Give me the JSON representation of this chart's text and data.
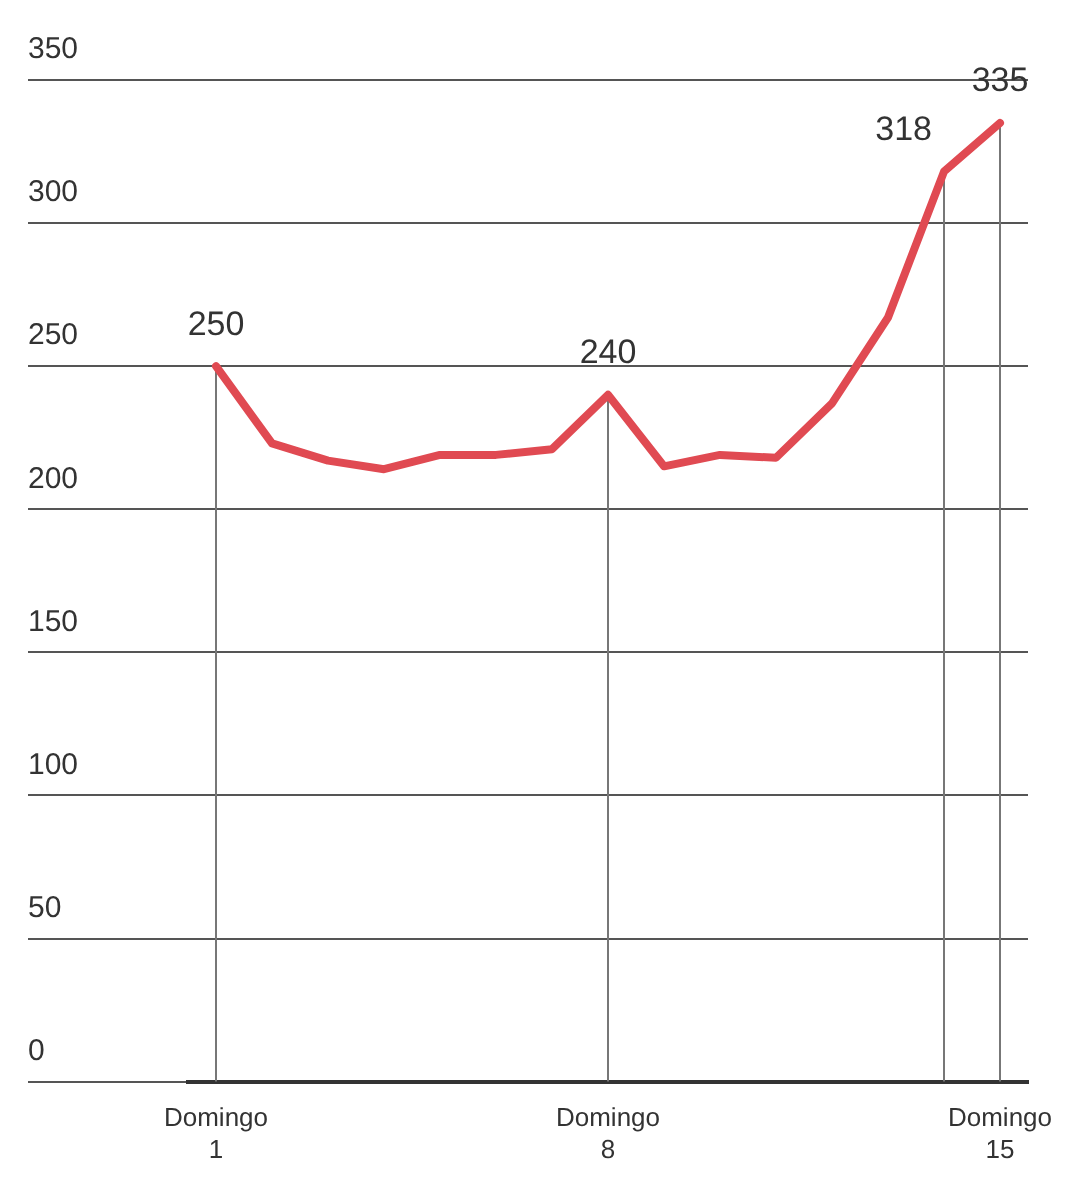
{
  "chart_data": {
    "type": "line",
    "categories": [
      "Domingo 1",
      null,
      null,
      null,
      null,
      null,
      null,
      "Domingo 8",
      null,
      null,
      null,
      null,
      null,
      null,
      "Domingo 15"
    ],
    "series": [
      {
        "color": "#e04a52",
        "values": [
          250,
          223,
          217,
          214,
          219,
          219,
          221,
          240,
          215,
          219,
          218,
          237,
          267,
          318,
          335
        ],
        "value_labels": [
          "250",
          null,
          null,
          null,
          null,
          null,
          null,
          "240",
          null,
          null,
          null,
          null,
          null,
          "318",
          "335"
        ]
      }
    ],
    "ylim": [
      0,
      350
    ],
    "yticks": [
      0,
      50,
      100,
      150,
      200,
      250,
      300,
      350
    ],
    "grid": true,
    "legend": false,
    "marker": "none",
    "line_style": "solid"
  }
}
